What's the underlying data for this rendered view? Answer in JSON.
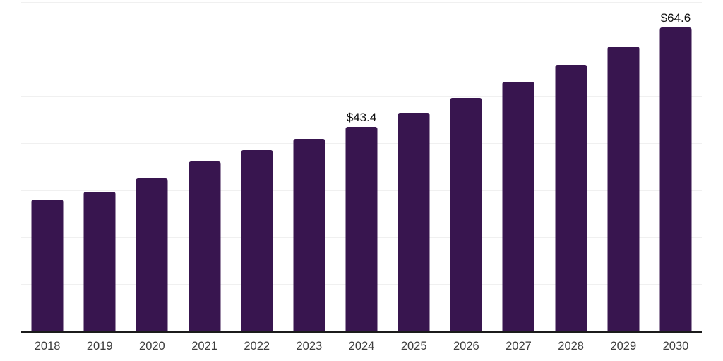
{
  "chart_data": {
    "type": "bar",
    "title": "",
    "categories": [
      "2018",
      "2019",
      "2020",
      "2021",
      "2022",
      "2023",
      "2024",
      "2025",
      "2026",
      "2027",
      "2028",
      "2029",
      "2030"
    ],
    "values": [
      28.0,
      29.7,
      32.5,
      36.1,
      38.5,
      40.9,
      43.4,
      46.4,
      49.6,
      53.1,
      56.6,
      60.5,
      64.6
    ],
    "value_labels": [
      "",
      "",
      "",
      "",
      "",
      "",
      "$43.4",
      "",
      "",
      "",
      "",
      "",
      "$64.6"
    ],
    "xlabel": "",
    "ylabel": "",
    "ylim": [
      0,
      70.4
    ],
    "grid": true,
    "gridline_values": [
      10,
      20,
      30,
      40,
      50,
      60,
      70
    ],
    "y_axis_tick_labels_visible": false,
    "legend_position": "none"
  },
  "colors": {
    "bar": "#38154f",
    "axis_line": "#1b1b1b",
    "gridline": "#f0f0f0",
    "tick_label": "#3d3d3d",
    "value_label": "#0e0e0e",
    "background": "#ffffff"
  }
}
